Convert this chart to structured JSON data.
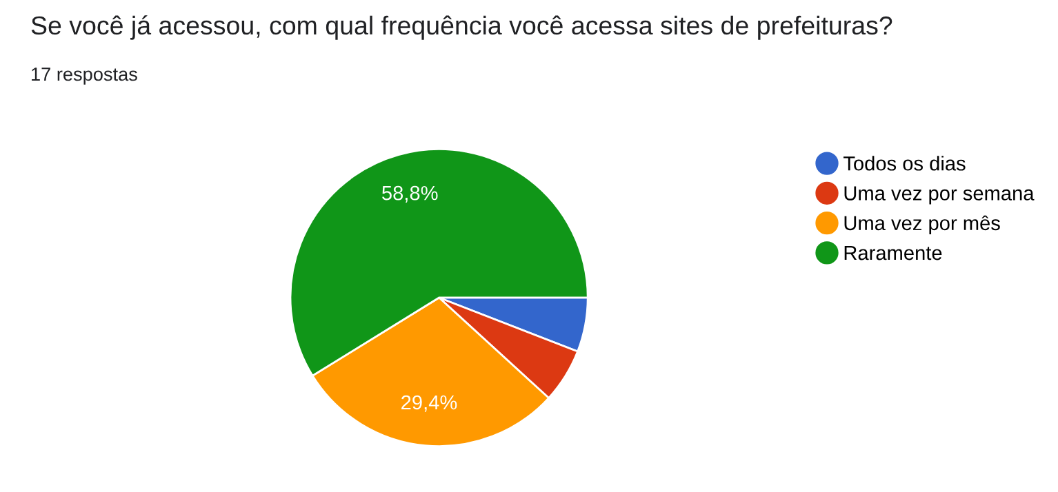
{
  "chart_data": {
    "type": "pie",
    "title": "Se você já acessou, com qual frequência você acessa sites de prefeituras?",
    "subtitle": "17 respostas",
    "categories": [
      "Todos os dias",
      "Uma vez por semana",
      "Uma vez por mês",
      "Raramente"
    ],
    "values": [
      5.9,
      5.9,
      29.4,
      58.8
    ],
    "colors": [
      "#3366cc",
      "#dc3912",
      "#ff9900",
      "#109618"
    ],
    "value_labels": [
      null,
      null,
      "29,4%",
      "58,8%"
    ],
    "legend": "right"
  }
}
